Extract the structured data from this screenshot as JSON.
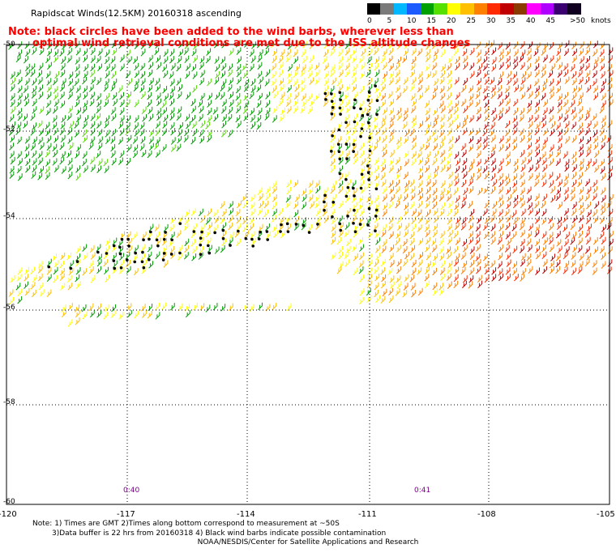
{
  "title": "Rapidscat Winds(12.5KM) 20160318 ascending",
  "note": {
    "line1": "Note: black circles have been added to the wind barbs, wherever less than",
    "line2": "optimal wind retrieval conditions are met due to the ISS altitude changes"
  },
  "colorbar": {
    "units": "knots",
    "colors": [
      "#000000",
      "#7a7a7a",
      "#00b8ff",
      "#1c5cff",
      "#00a000",
      "#55e000",
      "#ffff00",
      "#ffc000",
      "#ff8000",
      "#ff2a00",
      "#c00000",
      "#8b3a00",
      "#ff00ff",
      "#b000ff",
      "#3a0070",
      "#100020"
    ],
    "labels": [
      "0",
      "5",
      "10",
      "15",
      "20",
      "25",
      "30",
      "35",
      "40",
      "45",
      ">50"
    ]
  },
  "map": {
    "latitudes": [
      "-50",
      "-52",
      "-54",
      "-56",
      "-58",
      "-60"
    ],
    "longitudes": [
      "-120",
      "-117",
      "-114",
      "-111",
      "-108",
      "-105"
    ],
    "pass_times": [
      "0:40",
      "0:41"
    ],
    "contamination_marker": "black circle"
  },
  "footnotes": {
    "line1": "Note: 1) Times are GMT 2)Times along bottom correspond to measurement at ~50S",
    "line2": "3)Data buffer is 22 hrs from 20160318 4) Black wind barbs indicate possible contamination"
  },
  "credit": "NOAA/NESDIS/Center for Satellite Applications and Research"
}
